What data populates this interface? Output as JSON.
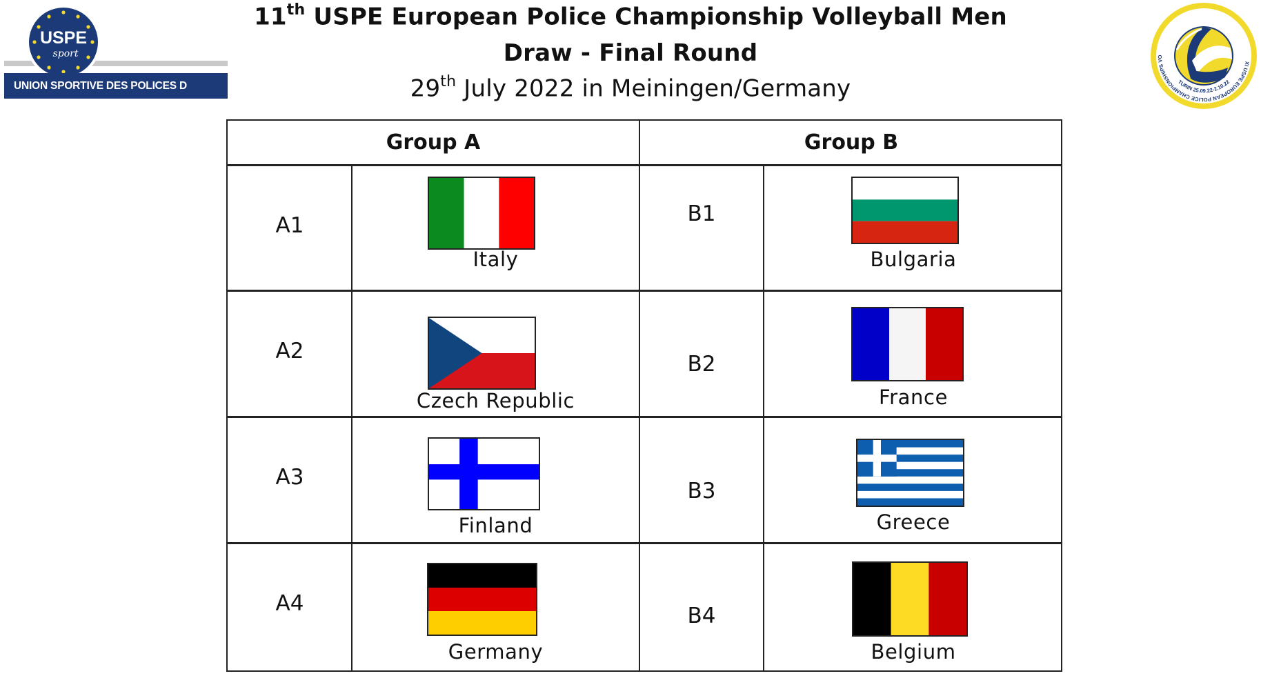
{
  "header": {
    "title_prefix": "11",
    "title_sup": "th",
    "title_text": " USPE European Police Championship Volleyball Men",
    "subtitle": "Draw - Final Round",
    "date_prefix": "29",
    "date_sup": "th",
    "date_text": " July 2022 in Meiningen/Germany"
  },
  "logos": {
    "left_badge_text": "USPE",
    "left_badge_script": "sport",
    "left_bar_text": "UNION SPORTIVE DES POLICES D´EUROPE",
    "right_ring_text": "XI USPE EUROPEAN POLICE CHAMPIONSHIPS VOLLEYBALL MEN",
    "right_ring_bottom": "TURIN 25.09.22-2.10.22",
    "colors": {
      "navy": "#1d3a78",
      "yellow": "#f2da2c",
      "gold": "#d8b200"
    }
  },
  "table": {
    "groups": [
      "Group A",
      "Group B"
    ],
    "group_a": [
      {
        "seed": "A1",
        "country": "Italy"
      },
      {
        "seed": "A2",
        "country": "Czech Republic"
      },
      {
        "seed": "A3",
        "country": "Finland"
      },
      {
        "seed": "A4",
        "country": "Germany"
      }
    ],
    "group_b": [
      {
        "seed": "B1",
        "country": "Bulgaria"
      },
      {
        "seed": "B2",
        "country": "France"
      },
      {
        "seed": "B3",
        "country": "Greece"
      },
      {
        "seed": "B4",
        "country": "Belgium"
      }
    ]
  }
}
